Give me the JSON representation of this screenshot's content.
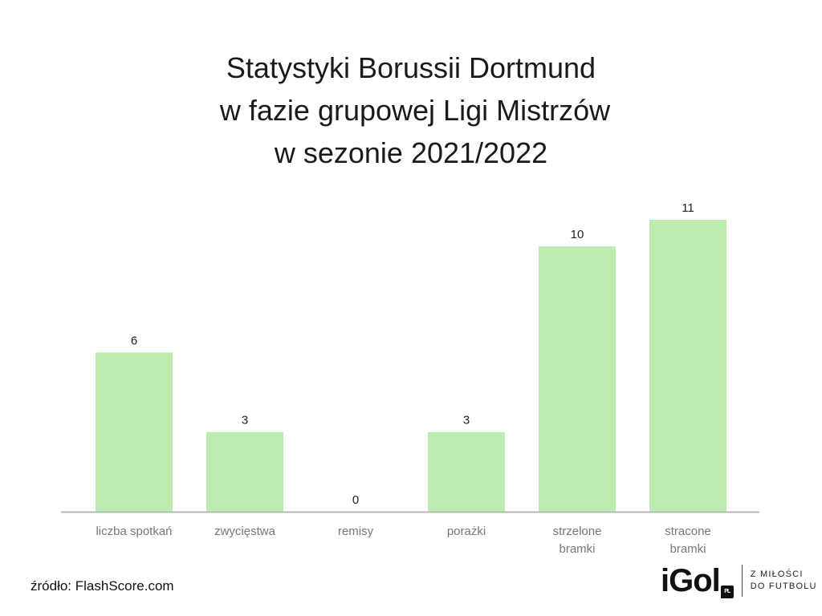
{
  "title_lines": [
    "Statystyki Borussii Dortmund",
    " w fazie grupowej Ligi Mistrzów",
    "w sezonie 2021/2022"
  ],
  "source": "źródło: FlashScore.com",
  "logo": {
    "word": "iGol",
    "badge": "PL",
    "tagline_1": "Z MIŁOŚCI",
    "tagline_2": "DO FUTBOLU"
  },
  "colors": {
    "bar": "#bdecb0",
    "axis": "#b8b8b8",
    "label": "#777777",
    "value": "#222222"
  },
  "chart_data": {
    "type": "bar",
    "title": "Statystyki Borussii Dortmund w fazie grupowej Ligi Mistrzów w sezonie 2021/2022",
    "categories": [
      [
        "liczba spotkań"
      ],
      [
        "zwycięstwa"
      ],
      [
        "remisy"
      ],
      [
        "porażki"
      ],
      [
        "strzelone",
        "bramki"
      ],
      [
        "stracone",
        "bramki"
      ]
    ],
    "values": [
      6,
      3,
      0,
      3,
      10,
      11
    ],
    "ylim": [
      0,
      11
    ],
    "grid": false,
    "legend": "none"
  }
}
